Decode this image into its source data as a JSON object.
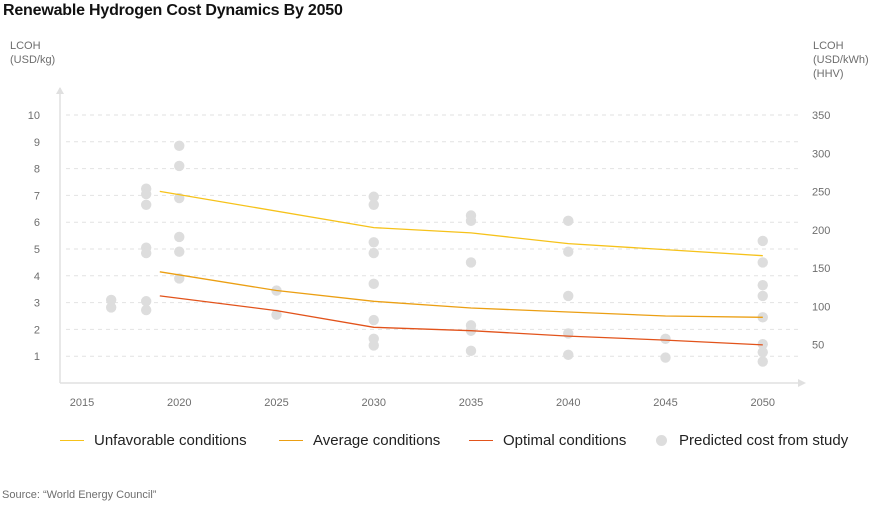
{
  "title": "Renewable Hydrogen Cost Dynamics By 2050",
  "source": "Source: “World Energy Council”",
  "colors": {
    "unfavorable": "#f6c21a",
    "average": "#eb9f13",
    "optimal": "#e2531b",
    "dots": "#dddddd",
    "axis": "#e0e0e0",
    "grid": "#e2e2e2",
    "tick_text": "#6e6e6e"
  },
  "chart_data": {
    "type": "line",
    "title": "Renewable Hydrogen Cost Dynamics By 2050",
    "ylabel_left": [
      "LCOH",
      "(USD/kg)"
    ],
    "ylabel_right": [
      "LCOH",
      "(USD/kWh)",
      "(HHV)"
    ],
    "x_ticks": [
      2015,
      2020,
      2025,
      2030,
      2035,
      2040,
      2045,
      2050
    ],
    "xlim": [
      2014,
      2052
    ],
    "y_left_ticks": [
      1,
      2,
      3,
      4,
      5,
      6,
      7,
      8,
      9,
      10
    ],
    "y_right_ticks": [
      50,
      100,
      150,
      200,
      250,
      300,
      350
    ],
    "ylim": [
      0,
      10.8
    ],
    "grid": true,
    "legend_position": "bottom",
    "series": [
      {
        "name": "Unfavorable conditions",
        "color_key": "unfavorable",
        "x": [
          2019,
          2030,
          2035,
          2040,
          2050
        ],
        "y": [
          7.15,
          5.8,
          5.6,
          5.2,
          4.75
        ]
      },
      {
        "name": "Average conditions",
        "color_key": "average",
        "x": [
          2019,
          2025,
          2030,
          2035,
          2040,
          2045,
          2050
        ],
        "y": [
          4.15,
          3.45,
          3.05,
          2.8,
          2.65,
          2.5,
          2.45
        ]
      },
      {
        "name": "Optimal conditions",
        "color_key": "optimal",
        "x": [
          2019,
          2025,
          2030,
          2035,
          2040,
          2045,
          2050
        ],
        "y": [
          3.25,
          2.7,
          2.08,
          1.95,
          1.75,
          1.6,
          1.42
        ]
      }
    ],
    "scatter": {
      "name": "Predicted cost from study",
      "points": [
        [
          2016.5,
          3.1
        ],
        [
          2016.5,
          2.82
        ],
        [
          2018.3,
          7.25
        ],
        [
          2018.3,
          7.05
        ],
        [
          2018.3,
          6.65
        ],
        [
          2018.3,
          5.05
        ],
        [
          2018.3,
          4.85
        ],
        [
          2018.3,
          3.05
        ],
        [
          2018.3,
          2.72
        ],
        [
          2020,
          8.85
        ],
        [
          2020,
          8.1
        ],
        [
          2020,
          6.9
        ],
        [
          2020,
          5.45
        ],
        [
          2020,
          4.9
        ],
        [
          2020,
          3.9
        ],
        [
          2025,
          3.45
        ],
        [
          2025,
          2.55
        ],
        [
          2030,
          6.95
        ],
        [
          2030,
          6.65
        ],
        [
          2030,
          5.25
        ],
        [
          2030,
          4.85
        ],
        [
          2030,
          3.7
        ],
        [
          2030,
          2.35
        ],
        [
          2030,
          1.65
        ],
        [
          2030,
          1.4
        ],
        [
          2035,
          6.25
        ],
        [
          2035,
          6.05
        ],
        [
          2035,
          4.5
        ],
        [
          2035,
          2.15
        ],
        [
          2035,
          1.95
        ],
        [
          2035,
          1.2
        ],
        [
          2040,
          6.05
        ],
        [
          2040,
          4.9
        ],
        [
          2040,
          3.25
        ],
        [
          2040,
          1.85
        ],
        [
          2040,
          1.05
        ],
        [
          2045,
          1.65
        ],
        [
          2045,
          0.95
        ],
        [
          2050,
          5.3
        ],
        [
          2050,
          4.5
        ],
        [
          2050,
          3.65
        ],
        [
          2050,
          3.25
        ],
        [
          2050,
          2.45
        ],
        [
          2050,
          1.45
        ],
        [
          2050,
          1.15
        ],
        [
          2050,
          0.8
        ]
      ]
    }
  }
}
